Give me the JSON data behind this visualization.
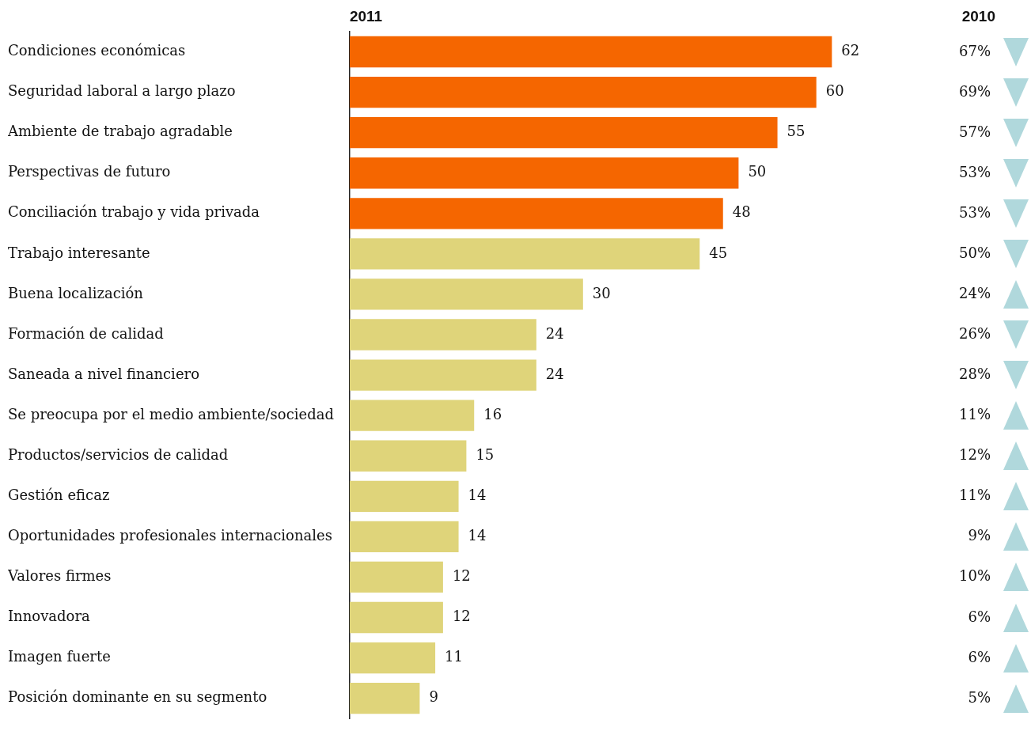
{
  "chart_data": {
    "type": "bar",
    "orientation": "horizontal",
    "data_labels": true,
    "legend": false,
    "categories": [
      "Condiciones económicas",
      "Seguridad laboral a largo plazo",
      "Ambiente de trabajo agradable",
      "Perspectivas de futuro",
      "Conciliación trabajo y vida privada",
      "Trabajo interesante",
      "Buena localización",
      "Formación de calidad",
      "Saneada a nivel financiero",
      "Se preocupa por el medio ambiente/sociedad",
      "Productos/servicios de calidad",
      "Gestión eficaz",
      "Oportunidades profesionales internacionales",
      "Valores firmes",
      "Innovadora",
      "Imagen fuerte",
      "Posición dominante en su segmento"
    ],
    "series": [
      {
        "name": "2011",
        "values": [
          62,
          60,
          55,
          50,
          48,
          45,
          30,
          24,
          24,
          16,
          15,
          14,
          14,
          12,
          12,
          11,
          9
        ],
        "colors": [
          "#f56600",
          "#f56600",
          "#f56600",
          "#f56600",
          "#f56600",
          "#dfd47a",
          "#dfd47a",
          "#dfd47a",
          "#dfd47a",
          "#dfd47a",
          "#dfd47a",
          "#dfd47a",
          "#dfd47a",
          "#dfd47a",
          "#dfd47a",
          "#dfd47a",
          "#dfd47a"
        ]
      }
    ],
    "annotations": [
      "2010",
      "67%",
      "69%",
      "57%",
      "53%",
      "53%",
      "50%",
      "24%",
      "26%",
      "28%",
      "11%",
      "12%",
      "11%",
      "9%",
      "10%",
      "6%",
      "6%",
      "5%"
    ]
  }
}
